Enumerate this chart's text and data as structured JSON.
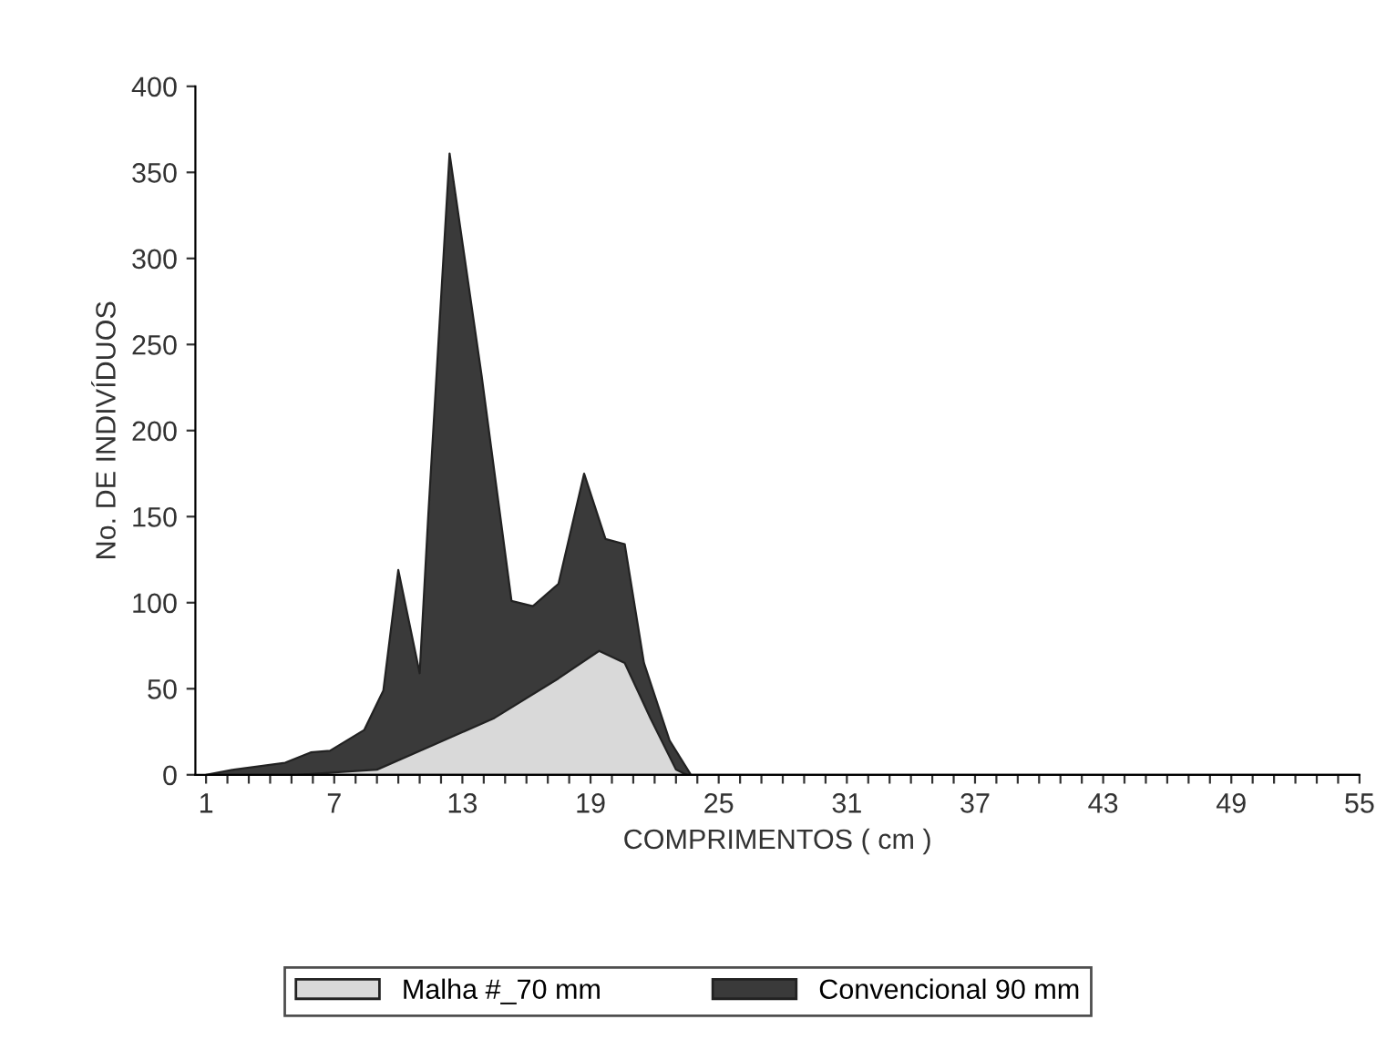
{
  "chart_data": {
    "type": "area",
    "xlabel": "COMPRIMENTOS ( cm )",
    "ylabel": "No. DE INDIVÍDUOS",
    "series": [
      {
        "name": "Convencional 90 mm",
        "color": "#3a3a3a",
        "x": [
          1,
          2.3,
          4.7,
          5.9,
          6.8,
          8.4,
          9.3,
          10.0,
          11.0,
          11.4,
          12.4,
          13.9,
          15.3,
          16.3,
          17.5,
          18.7,
          19.7,
          20.6,
          21.5,
          22.7,
          23.7,
          55
        ],
        "values": [
          0,
          3,
          7,
          13,
          14,
          26,
          49,
          119,
          59,
          150,
          361,
          232,
          101,
          98,
          111,
          175,
          137,
          134,
          65,
          20,
          0,
          0
        ]
      },
      {
        "name": "Malha #_70 mm",
        "color": "#d9d9d9",
        "x": [
          5.3,
          9,
          11.4,
          14.5,
          17.5,
          19.4,
          20.6,
          21.8,
          23.0,
          23.5
        ],
        "values": [
          0,
          3,
          16,
          33,
          56,
          72,
          65,
          33,
          3,
          0
        ]
      }
    ],
    "xlim": [
      0.5,
      55
    ],
    "ylim": [
      0,
      400
    ],
    "xticks": [
      1,
      {
        "value": 2,
        "label": null
      },
      {
        "value": 3,
        "label": null
      },
      {
        "value": 4,
        "label": null
      },
      {
        "value": 5,
        "label": null
      },
      {
        "value": 6,
        "label": null
      },
      7,
      {
        "value": 8,
        "label": null
      },
      {
        "value": 9,
        "label": null
      },
      {
        "value": 10,
        "label": null
      },
      {
        "value": 11,
        "label": null
      },
      {
        "value": 12,
        "label": null
      },
      13,
      {
        "value": 14,
        "label": null
      },
      {
        "value": 15,
        "label": null
      },
      {
        "value": 16,
        "label": null
      },
      {
        "value": 17,
        "label": null
      },
      {
        "value": 18,
        "label": null
      },
      19,
      {
        "value": 20,
        "label": null
      },
      {
        "value": 21,
        "label": null
      },
      {
        "value": 22,
        "label": null
      },
      {
        "value": 23,
        "label": null
      },
      {
        "value": 24,
        "label": null
      },
      25,
      {
        "value": 26,
        "label": null
      },
      {
        "value": 27,
        "label": null
      },
      {
        "value": 28,
        "label": null
      },
      {
        "value": 29,
        "label": null
      },
      {
        "value": 30,
        "label": null
      },
      31,
      {
        "value": 32,
        "label": null
      },
      {
        "value": 33,
        "label": null
      },
      {
        "value": 34,
        "label": null
      },
      {
        "value": 35,
        "label": null
      },
      {
        "value": 36,
        "label": null
      },
      37,
      {
        "value": 38,
        "label": null
      },
      {
        "value": 39,
        "label": null
      },
      {
        "value": 40,
        "label": null
      },
      {
        "value": 41,
        "label": null
      },
      {
        "value": 42,
        "label": null
      },
      43,
      {
        "value": 44,
        "label": null
      },
      {
        "value": 45,
        "label": null
      },
      {
        "value": 46,
        "label": null
      },
      {
        "value": 47,
        "label": null
      },
      {
        "value": 48,
        "label": null
      },
      49,
      {
        "value": 50,
        "label": null
      },
      {
        "value": 51,
        "label": null
      },
      {
        "value": 52,
        "label": null
      },
      {
        "value": 53,
        "label": null
      },
      {
        "value": 54,
        "label": null
      },
      55
    ],
    "yticks": [
      0,
      50,
      100,
      150,
      200,
      250,
      300,
      350,
      400
    ],
    "grid": false,
    "legend": "bottom"
  }
}
